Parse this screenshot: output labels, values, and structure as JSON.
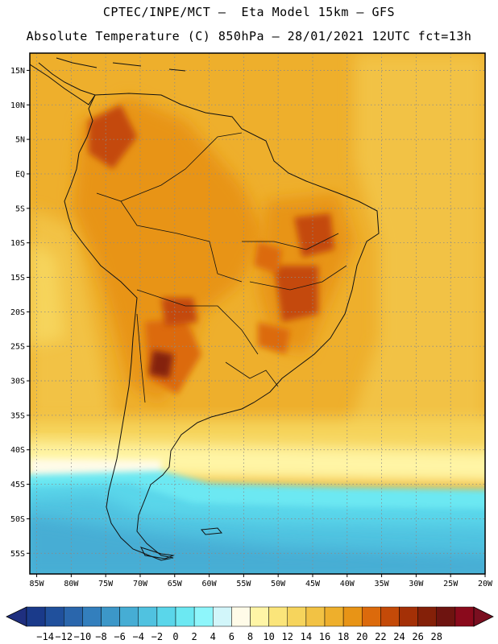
{
  "title": {
    "line1": "CPTEC/INPE/MCT –  Eta Model 15km – GFS",
    "line2": "Absolute Temperature (C) 850hPa – 28/01/2021 12UTC fct=13h"
  },
  "map": {
    "lat_labels": [
      "15N",
      "10N",
      "5N",
      "EQ",
      "5S",
      "10S",
      "15S",
      "20S",
      "25S",
      "30S",
      "35S",
      "40S",
      "45S",
      "50S",
      "55S"
    ],
    "lon_labels": [
      "85W",
      "80W",
      "75W",
      "70W",
      "65W",
      "60W",
      "55W",
      "50W",
      "45W",
      "40W",
      "35W",
      "30W",
      "25W",
      "20W"
    ],
    "lat_range": [
      17.5,
      -58
    ],
    "lon_range": [
      -86,
      -20
    ],
    "grid": true
  },
  "colorbar": {
    "labels": [
      "-14",
      "-12",
      "-10",
      "-8",
      "-6",
      "-4",
      "-2",
      "0",
      "2",
      "4",
      "6",
      "8",
      "10",
      "12",
      "14",
      "16",
      "18",
      "20",
      "22",
      "24",
      "26",
      "28"
    ],
    "colors": [
      "#1a3a8a",
      "#20509c",
      "#2a66ac",
      "#337fbd",
      "#3c97c8",
      "#46add4",
      "#50c2e0",
      "#5ad6ea",
      "#6ce8f2",
      "#8ef6fb",
      "#d2f6fa",
      "#fffbe8",
      "#fff5a6",
      "#fbe57a",
      "#f6d45c",
      "#f2c244",
      "#eeaf2c",
      "#e89416",
      "#dc6a0c",
      "#c44a08",
      "#a43006",
      "#842008",
      "#6e1410",
      "#8a0a1c"
    ],
    "under_color": "#1f2f7f",
    "over_color": "#7a0f20"
  }
}
